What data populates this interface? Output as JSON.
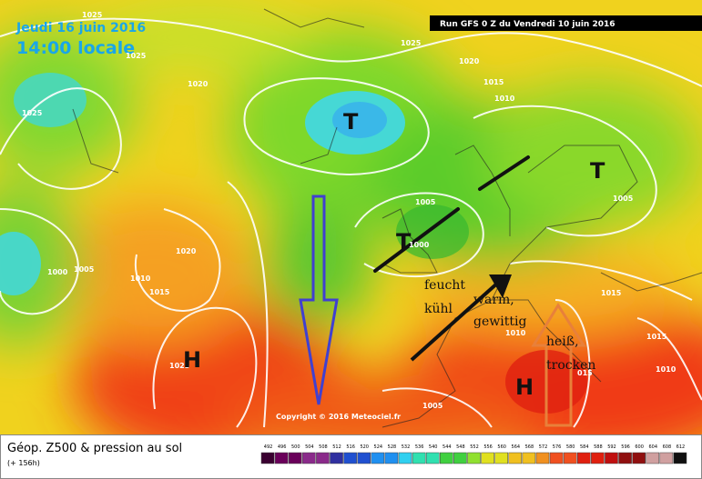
{
  "header": {
    "date": "Jeudi 16 juin 2016",
    "time": "14:00 locale",
    "run": "Run GFS 0 Z du Vendredi 10 juin 2016"
  },
  "isobar_labels": [
    "1025",
    "1025",
    "1020",
    "1025",
    "1025",
    "1020",
    "1015",
    "1010",
    "1005",
    "1000",
    "1005",
    "1020",
    "1005",
    "1000",
    "1010",
    "1015",
    "1010",
    "1015",
    "1015",
    "1010",
    "015",
    "1005",
    "1025"
  ],
  "pressure_systems": [
    "T",
    "T",
    "T",
    "H",
    "H"
  ],
  "annotations": [
    "feucht",
    "kühl",
    "warm,",
    "gewittig",
    "heiß,",
    "trocken"
  ],
  "copyright": "Copyright © 2016 Meteociel.fr",
  "footer": {
    "title": "Géop. Z500 & pression au sol",
    "lead": "(+ 156h)"
  },
  "color_scale": [
    492,
    496,
    500,
    504,
    508,
    512,
    516,
    520,
    524,
    528,
    532,
    536,
    540,
    544,
    548,
    552,
    556,
    560,
    564,
    568,
    572,
    576,
    580,
    584,
    588,
    592,
    596,
    600,
    604,
    608,
    612
  ]
}
